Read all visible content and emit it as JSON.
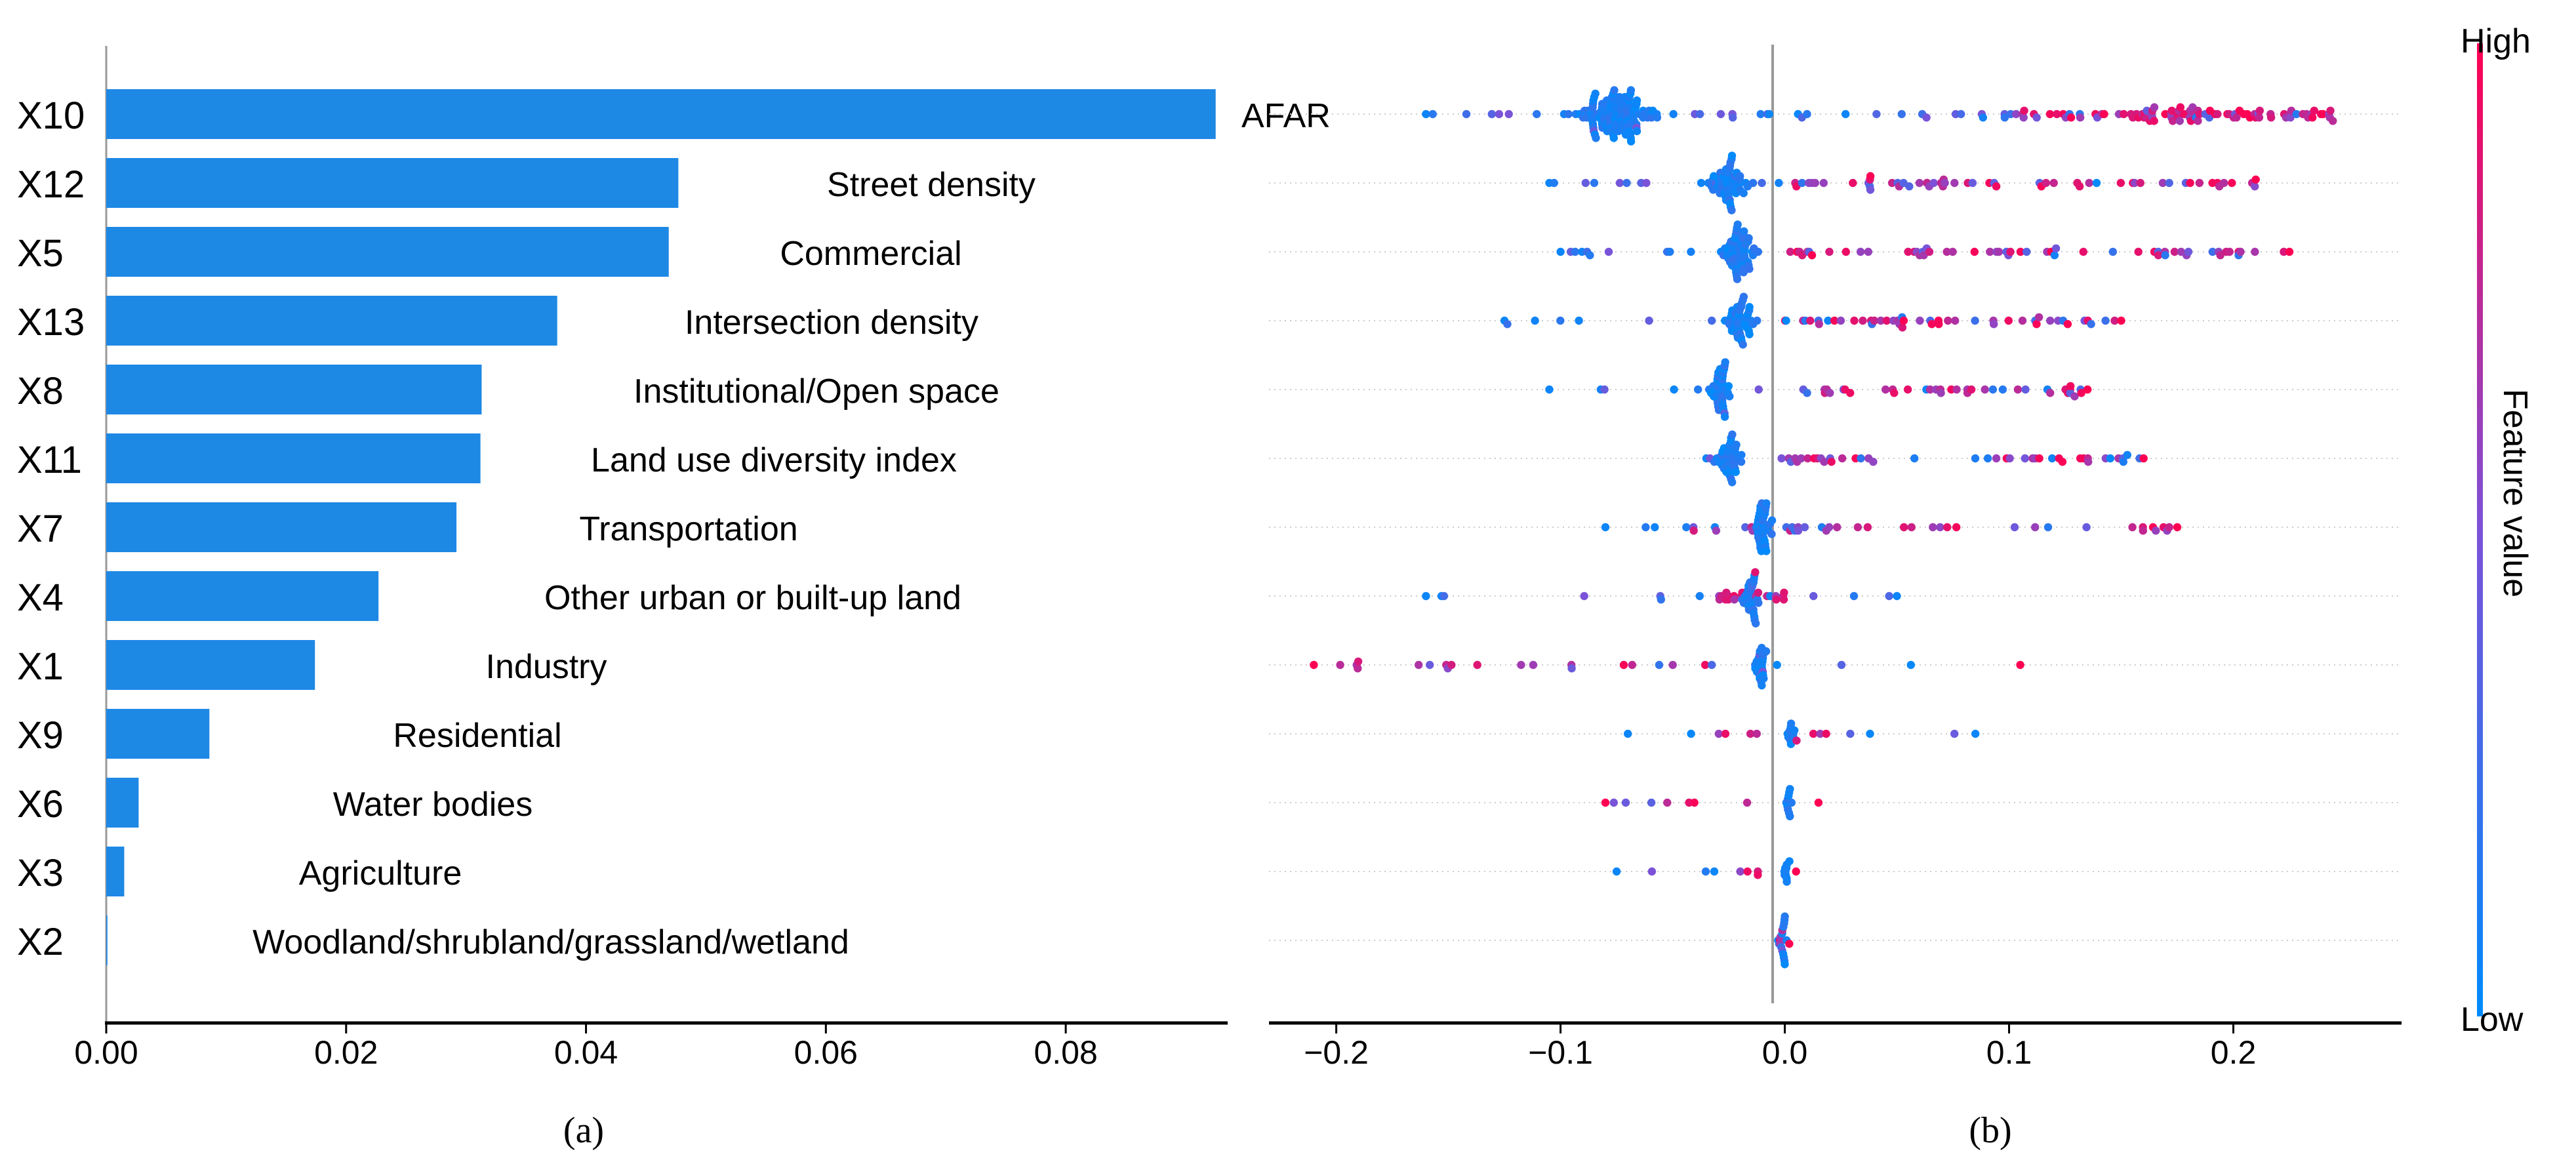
{
  "charts": [
    {
      "id": "a",
      "type": "bar",
      "orientation": "horizontal",
      "caption": "(a)",
      "xlim": [
        0.0,
        0.0935
      ],
      "xticks": [
        0.0,
        0.02,
        0.04,
        0.06,
        0.08
      ],
      "xtick_labels": [
        "0.00",
        "0.02",
        "0.04",
        "0.06",
        "0.08"
      ],
      "bar_color": "#1e88e5",
      "categories": [
        "X10",
        "X12",
        "X5",
        "X13",
        "X8",
        "X11",
        "X7",
        "X4",
        "X1",
        "X9",
        "X6",
        "X3",
        "X2"
      ],
      "values": [
        0.0925,
        0.0477,
        0.0469,
        0.0376,
        0.0313,
        0.0312,
        0.0292,
        0.0227,
        0.0174,
        0.0086,
        0.0027,
        0.0015,
        0.0001
      ],
      "feature_names": [
        "AFAR",
        "Street density",
        "Commercial",
        "Intersection density",
        "Institutional/Open space",
        "Land use diversity index",
        "Transportation",
        "Other urban or built-up land",
        "Industry",
        "Residential",
        "Water bodies",
        "Agriculture",
        "Woodland/shrubland/grassland/wetland"
      ]
    },
    {
      "id": "b",
      "type": "scatter",
      "subtype": "beeswarm",
      "caption": "(b)",
      "xlim": [
        -0.23,
        0.275
      ],
      "xticks": [
        -0.2,
        -0.1,
        0.0,
        0.1,
        0.2
      ],
      "xtick_labels": [
        "−0.2",
        "−0.1",
        "0.0",
        "0.1",
        "0.2"
      ],
      "colorbar": {
        "label": "Feature value",
        "high_label": "High",
        "low_label": "Low",
        "high_color": "#ff0052",
        "low_color": "#008bfb"
      },
      "rows": [
        {
          "feature": "X10",
          "spread": 0.0925,
          "low_center": -0.075,
          "high_range": [
            0.1,
            0.245
          ],
          "outliers": [
            -0.16,
            0.24
          ]
        },
        {
          "feature": "X12",
          "spread": 0.0477,
          "low_center": -0.025,
          "high_range": [
            0.0,
            0.21
          ],
          "outliers": [
            -0.105,
            0.21
          ]
        },
        {
          "feature": "X5",
          "spread": 0.0469,
          "low_center": -0.02,
          "high_range": [
            0.0,
            0.225
          ],
          "outliers": [
            -0.1,
            0.225
          ]
        },
        {
          "feature": "X13",
          "spread": 0.0376,
          "low_center": -0.02,
          "high_range": [
            0.0,
            0.15
          ],
          "outliers": [
            -0.125,
            0.15
          ]
        },
        {
          "feature": "X8",
          "spread": 0.0313,
          "low_center": -0.028,
          "high_range": [
            0.01,
            0.135
          ],
          "outliers": [
            -0.105,
            0.135
          ]
        },
        {
          "feature": "X11",
          "spread": 0.0312,
          "low_center": -0.025,
          "high_range": [
            0.0,
            0.16
          ],
          "outliers": [
            -0.035,
            0.16
          ]
        },
        {
          "feature": "X7",
          "spread": 0.0292,
          "low_center": -0.01,
          "high_range": [
            -0.045,
            0.175
          ],
          "outliers": [
            -0.08,
            0.175
          ]
        },
        {
          "feature": "X4",
          "spread": 0.0227,
          "low_center": -0.015,
          "high_range": [
            -0.03,
            0.0
          ],
          "outliers": [
            -0.16,
            0.05
          ]
        },
        {
          "feature": "X1",
          "spread": 0.0174,
          "low_center": -0.01,
          "high_range": [
            -0.21,
            0.0
          ],
          "outliers": [
            -0.21,
            0.105
          ]
        },
        {
          "feature": "X9",
          "spread": 0.0086,
          "low_center": 0.003,
          "high_range": [
            -0.03,
            0.02
          ],
          "outliers": [
            -0.07,
            0.085
          ]
        },
        {
          "feature": "X6",
          "spread": 0.0027,
          "low_center": 0.002,
          "high_range": [
            -0.08,
            -0.01
          ],
          "outliers": [
            -0.08,
            0.015
          ]
        },
        {
          "feature": "X3",
          "spread": 0.0015,
          "low_center": 0.001,
          "high_range": [
            -0.02,
            -0.01
          ],
          "outliers": [
            -0.075,
            0.005
          ]
        },
        {
          "feature": "X2",
          "spread": 0.0001,
          "low_center": 0.0,
          "high_range": [
            -0.003,
            0.0
          ],
          "outliers": [
            -0.003,
            0.002
          ]
        }
      ]
    }
  ]
}
